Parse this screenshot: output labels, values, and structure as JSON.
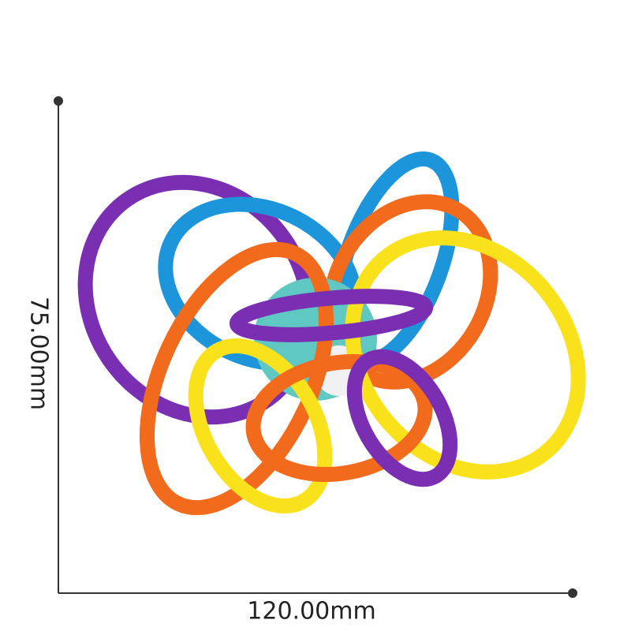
{
  "dimensions": {
    "height": "75.00mm",
    "width": "120.00mm"
  }
}
